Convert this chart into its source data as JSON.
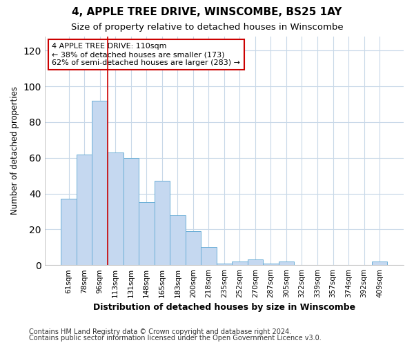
{
  "title1": "4, APPLE TREE DRIVE, WINSCOMBE, BS25 1AY",
  "title2": "Size of property relative to detached houses in Winscombe",
  "xlabel": "Distribution of detached houses by size in Winscombe",
  "ylabel": "Number of detached properties",
  "categories": [
    "61sqm",
    "78sqm",
    "96sqm",
    "113sqm",
    "131sqm",
    "148sqm",
    "165sqm",
    "183sqm",
    "200sqm",
    "218sqm",
    "235sqm",
    "252sqm",
    "270sqm",
    "287sqm",
    "305sqm",
    "322sqm",
    "339sqm",
    "357sqm",
    "374sqm",
    "392sqm",
    "409sqm"
  ],
  "values": [
    37,
    62,
    92,
    63,
    60,
    35,
    47,
    28,
    19,
    10,
    1,
    2,
    3,
    1,
    2,
    0,
    0,
    0,
    0,
    0,
    2
  ],
  "bar_color": "#c5d8f0",
  "bar_edge_color": "#6aaed6",
  "vline_x": 3,
  "vline_color": "#cc0000",
  "annotation_title": "4 APPLE TREE DRIVE: 110sqm",
  "annotation_line1": "← 38% of detached houses are smaller (173)",
  "annotation_line2": "62% of semi-detached houses are larger (283) →",
  "annotation_box_color": "#ffffff",
  "annotation_box_edge": "#cc0000",
  "ylim": [
    0,
    128
  ],
  "yticks": [
    0,
    20,
    40,
    60,
    80,
    100,
    120
  ],
  "footer1": "Contains HM Land Registry data © Crown copyright and database right 2024.",
  "footer2": "Contains public sector information licensed under the Open Government Licence v3.0.",
  "bg_color": "#ffffff",
  "plot_bg_color": "#ffffff",
  "grid_color": "#c8d8e8",
  "title1_fontsize": 11,
  "title2_fontsize": 9.5
}
